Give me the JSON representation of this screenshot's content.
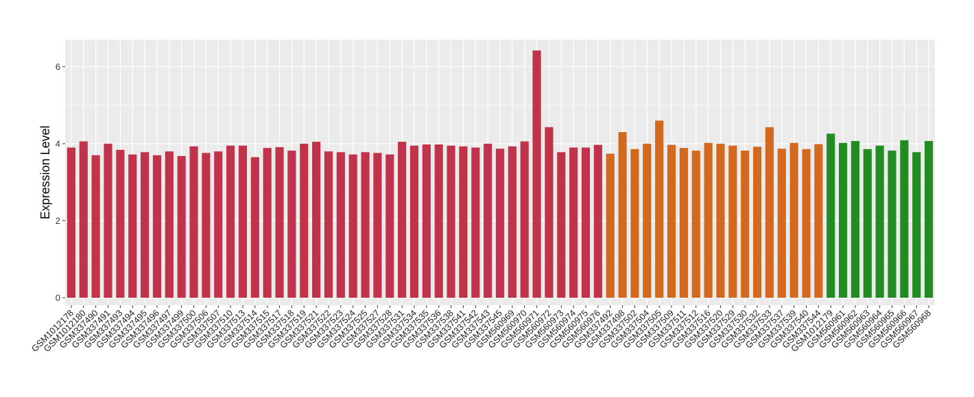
{
  "chart_data": {
    "type": "bar",
    "ylabel": "Expression Level",
    "xlabel": "",
    "ylim": [
      0,
      6.7
    ],
    "yticks": [
      0,
      2,
      4,
      6
    ],
    "grid": true,
    "legend": "none",
    "colors": {
      "group1": "#C0334A",
      "group2": "#D2691E",
      "group3": "#228B22",
      "panel": "#EBEBEB",
      "gridline": "#FFFFFF"
    },
    "categories": [
      "GSM1012178",
      "GSM1012180",
      "GSM337490",
      "GSM337491",
      "GSM337493",
      "GSM337494",
      "GSM337495",
      "GSM337496",
      "GSM337497",
      "GSM337499",
      "GSM337500",
      "GSM337506",
      "GSM337507",
      "GSM337510",
      "GSM337513",
      "GSM337514",
      "GSM337515",
      "GSM337517",
      "GSM337518",
      "GSM337519",
      "GSM337521",
      "GSM337522",
      "GSM337523",
      "GSM337524",
      "GSM337525",
      "GSM337527",
      "GSM337528",
      "GSM337531",
      "GSM337534",
      "GSM337535",
      "GSM337536",
      "GSM337538",
      "GSM337541",
      "GSM337542",
      "GSM337543",
      "GSM337545",
      "GSM560969",
      "GSM560970",
      "GSM560971",
      "GSM560972",
      "GSM560973",
      "GSM560974",
      "GSM560975",
      "GSM560976",
      "GSM337492",
      "GSM337498",
      "GSM337502",
      "GSM337504",
      "GSM337505",
      "GSM337509",
      "GSM337511",
      "GSM337512",
      "GSM337516",
      "GSM337520",
      "GSM337529",
      "GSM337530",
      "GSM337532",
      "GSM337533",
      "GSM337537",
      "GSM337539",
      "GSM337540",
      "GSM337544",
      "GSM1012179",
      "GSM560961",
      "GSM560962",
      "GSM560963",
      "GSM560964",
      "GSM560965",
      "GSM560966",
      "GSM560967",
      "GSM560968"
    ],
    "values": [
      3.9,
      4.06,
      3.7,
      4.0,
      3.84,
      3.72,
      3.78,
      3.7,
      3.8,
      3.68,
      3.93,
      3.76,
      3.8,
      3.95,
      3.95,
      3.65,
      3.89,
      3.91,
      3.82,
      4.0,
      4.05,
      3.8,
      3.78,
      3.72,
      3.78,
      3.76,
      3.72,
      4.05,
      3.95,
      3.98,
      3.98,
      3.95,
      3.93,
      3.9,
      4.0,
      3.87,
      3.93,
      4.06,
      6.42,
      4.43,
      3.78,
      3.9,
      3.9,
      3.97,
      3.74,
      4.3,
      3.86,
      4.0,
      4.6,
      3.97,
      3.89,
      3.82,
      4.02,
      4.0,
      3.95,
      3.82,
      3.92,
      4.43,
      3.87,
      4.02,
      3.86,
      3.99,
      4.26,
      4.02,
      4.07,
      3.86,
      3.95,
      3.82,
      4.09,
      3.78,
      4.07
    ],
    "groups": [
      1,
      1,
      1,
      1,
      1,
      1,
      1,
      1,
      1,
      1,
      1,
      1,
      1,
      1,
      1,
      1,
      1,
      1,
      1,
      1,
      1,
      1,
      1,
      1,
      1,
      1,
      1,
      1,
      1,
      1,
      1,
      1,
      1,
      1,
      1,
      1,
      1,
      1,
      1,
      1,
      1,
      1,
      1,
      1,
      2,
      2,
      2,
      2,
      2,
      2,
      2,
      2,
      2,
      2,
      2,
      2,
      2,
      2,
      2,
      2,
      2,
      2,
      3,
      3,
      3,
      3,
      3,
      3,
      3,
      3,
      3
    ]
  }
}
